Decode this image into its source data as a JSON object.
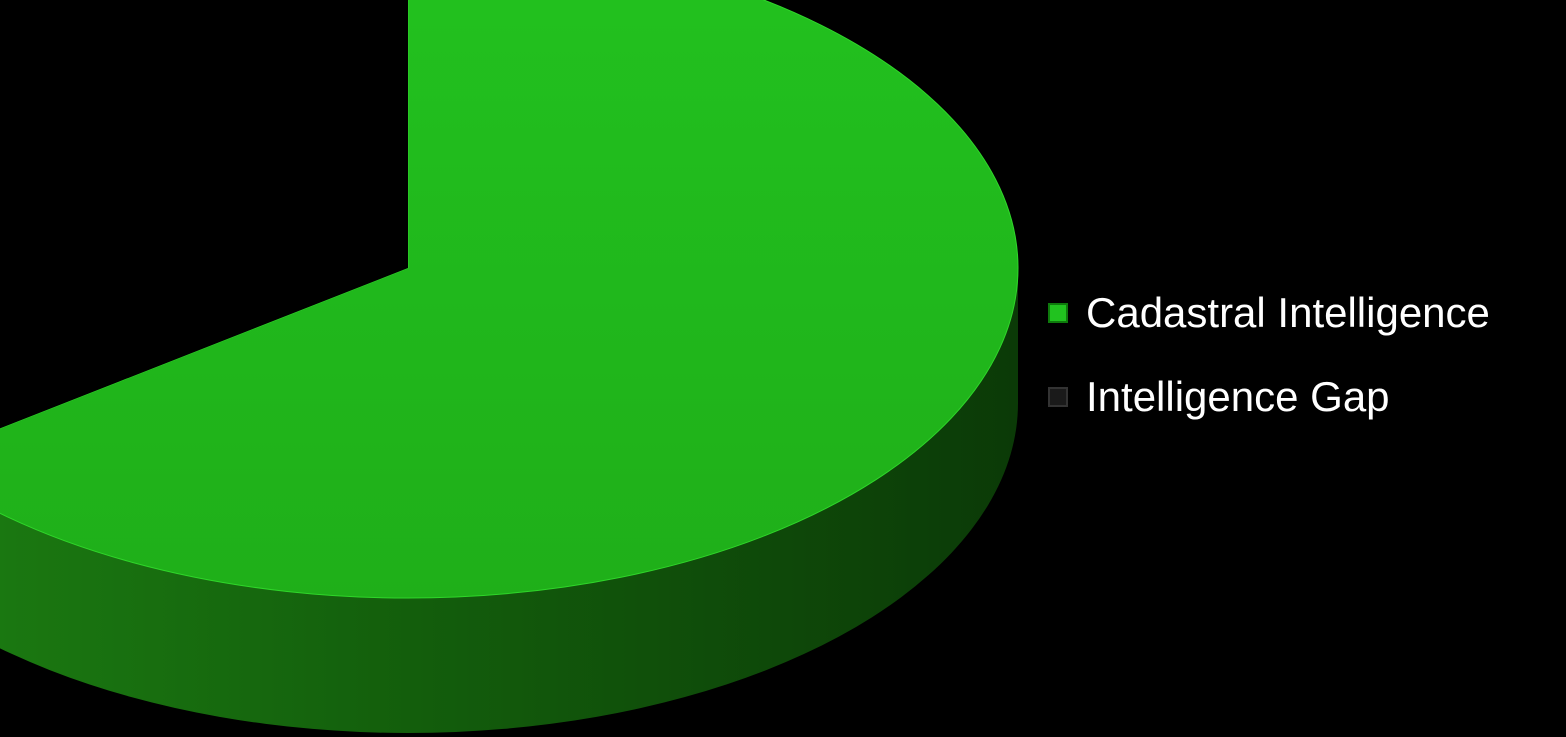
{
  "chart_data": {
    "type": "pie",
    "style": "3d",
    "title": "",
    "categories": [
      "Cadastral Intelligence",
      "Intelligence Gap"
    ],
    "values": [
      65,
      35
    ],
    "colors": [
      "#21c21f",
      "#000000"
    ],
    "legend_position": "right"
  },
  "legend": {
    "items": [
      {
        "label": "Cadastral Intelligence",
        "color": "#21c21f"
      },
      {
        "label": "Intelligence Gap",
        "color": "#1a1a1a"
      }
    ]
  }
}
